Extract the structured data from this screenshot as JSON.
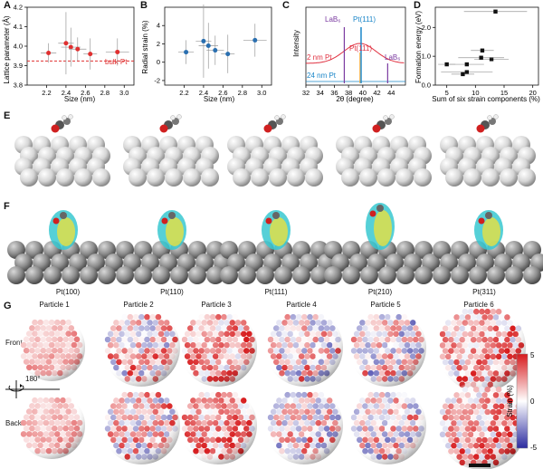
{
  "panels": {
    "A": {
      "letter": "A"
    },
    "B": {
      "letter": "B"
    },
    "C": {
      "letter": "C"
    },
    "D": {
      "letter": "D"
    },
    "E": {
      "letter": "E"
    },
    "F": {
      "letter": "F"
    },
    "G": {
      "letter": "G"
    }
  },
  "chart_data": [
    {
      "type": "scatter",
      "xlabel": "Size (nm)",
      "ylabel": "Lattice parameter (Å)",
      "xlim": [
        2.0,
        3.1
      ],
      "ylim": [
        3.8,
        4.2
      ],
      "xticks": [
        "2.2",
        "2.4",
        "2.6",
        "2.8",
        "3.0"
      ],
      "yticks": [
        "3.8",
        "3.9",
        "4.0",
        "4.1",
        "4.2"
      ],
      "points": [
        {
          "x": 2.22,
          "y": 3.965,
          "xerr": 0.08,
          "yerr": 0.05
        },
        {
          "x": 2.4,
          "y": 4.015,
          "xerr": 0.08,
          "yerr": 0.16
        },
        {
          "x": 2.45,
          "y": 3.995,
          "xerr": 0.1,
          "yerr": 0.1
        },
        {
          "x": 2.52,
          "y": 3.985,
          "xerr": 0.09,
          "yerr": 0.06
        },
        {
          "x": 2.65,
          "y": 3.96,
          "xerr": 0.07,
          "yerr": 0.08
        },
        {
          "x": 2.93,
          "y": 3.97,
          "xerr": 0.12,
          "yerr": 0.07
        }
      ],
      "reference": {
        "y": 3.924,
        "label": "bulk Pt"
      },
      "color": "#e03030"
    },
    {
      "type": "scatter",
      "xlabel": "Size (nm)",
      "ylabel": "Radial strain (%)",
      "xlim": [
        2.0,
        3.1
      ],
      "ylim": [
        -2.5,
        6
      ],
      "xticks": [
        "2.2",
        "2.4",
        "2.6",
        "2.8",
        "3.0"
      ],
      "yticks": [
        "-2",
        "0",
        "2",
        "4"
      ],
      "points": [
        {
          "x": 2.22,
          "y": 1.1,
          "xerr": 0.08,
          "yerr": 1.3
        },
        {
          "x": 2.4,
          "y": 2.3,
          "xerr": 0.08,
          "yerr": 4.0
        },
        {
          "x": 2.45,
          "y": 1.8,
          "xerr": 0.1,
          "yerr": 2.5
        },
        {
          "x": 2.52,
          "y": 1.3,
          "xerr": 0.09,
          "yerr": 1.6
        },
        {
          "x": 2.65,
          "y": 0.9,
          "xerr": 0.07,
          "yerr": 2.1
        },
        {
          "x": 2.93,
          "y": 2.4,
          "xerr": 0.12,
          "yerr": 1.8
        }
      ],
      "color": "#2a6fb0"
    },
    {
      "type": "line",
      "xlabel": "2θ (degree)",
      "ylabel": "Intensity",
      "xlim": [
        32,
        46
      ],
      "xticks": [
        "32",
        "34",
        "36",
        "38",
        "40",
        "42",
        "44"
      ],
      "labels": {
        "lab1": "LaB₆",
        "pt111a": "Pt(111)",
        "pt111b": "Pt(111)",
        "lab2": "LaB₆",
        "nm2": "2 nm Pt",
        "nm24": "24 nm Pt"
      },
      "colors": {
        "lab": "#7a3aa0",
        "pt": "#1a86c8",
        "red": "#e03040"
      }
    },
    {
      "type": "scatter",
      "xlabel": "Sum of six strain components (%)",
      "ylabel": "Formation energy (eV)",
      "xlim": [
        3,
        21
      ],
      "ylim": [
        0,
        2.7
      ],
      "xticks": [
        "5",
        "10",
        "15",
        "20"
      ],
      "yticks": [
        "0.0",
        "1.0",
        "2.0"
      ],
      "points": [
        {
          "x": 13.5,
          "y": 2.55,
          "xerr": 5.5,
          "yerr": 0
        },
        {
          "x": 11.2,
          "y": 1.2,
          "xerr": 2.0,
          "yerr": 0
        },
        {
          "x": 12.8,
          "y": 0.9,
          "xerr": 3.0,
          "yerr": 0
        },
        {
          "x": 11.0,
          "y": 0.95,
          "xerr": 4.0,
          "yerr": 0
        },
        {
          "x": 8.5,
          "y": 0.72,
          "xerr": 3.0,
          "yerr": 0
        },
        {
          "x": 5.0,
          "y": 0.72,
          "xerr": 1.5,
          "yerr": 0
        },
        {
          "x": 8.5,
          "y": 0.45,
          "xerr": 4.5,
          "yerr": 0
        },
        {
          "x": 7.8,
          "y": 0.38,
          "xerr": 2.0,
          "yerr": 0
        }
      ],
      "color": "#111111"
    }
  ],
  "facets": [
    "Pt(100)",
    "Pt(110)",
    "Pt(111)",
    "Pt(210)",
    "Pt(311)"
  ],
  "particles": [
    "Particle 1",
    "Particle 2",
    "Particle 3",
    "Particle 4",
    "Particle 5",
    "Particle 6"
  ],
  "rows": {
    "front": "Front",
    "back": "Back",
    "rot": "180°"
  },
  "colorbar": {
    "label": "Strain (%)",
    "max": "5",
    "mid": "0",
    "min": "-5"
  }
}
